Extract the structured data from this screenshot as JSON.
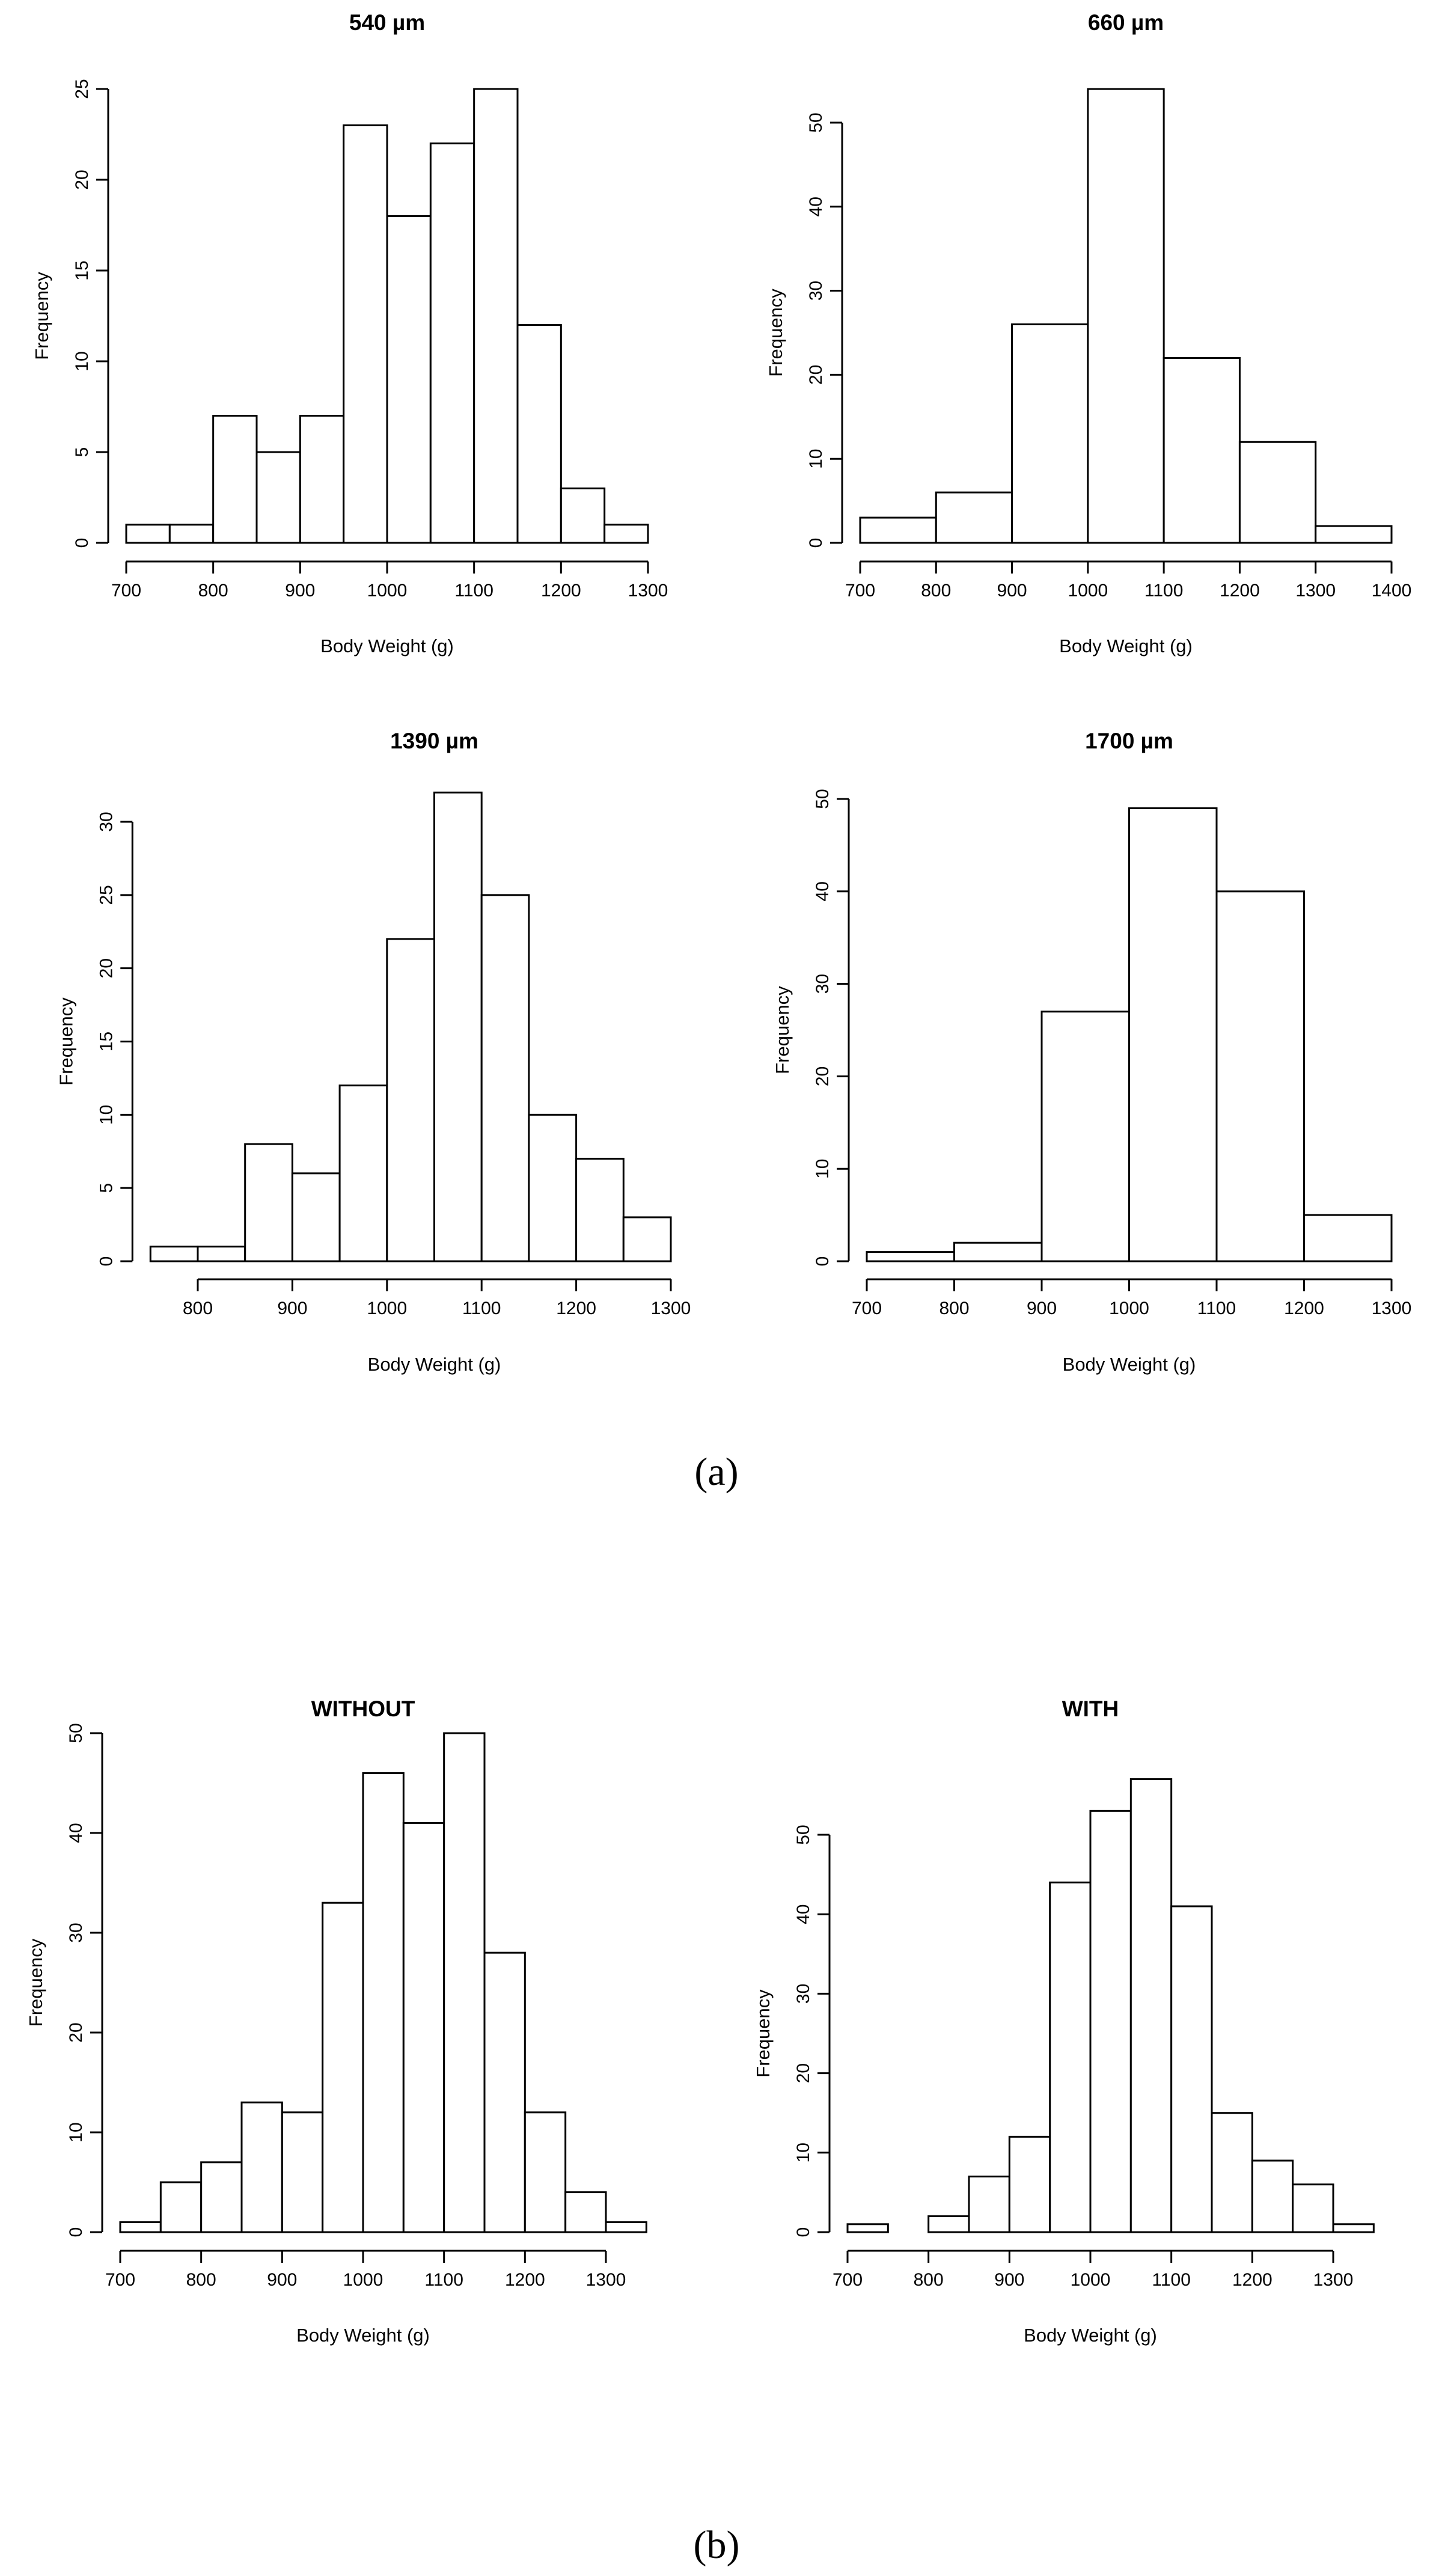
{
  "panel_labels": {
    "a": "(a)",
    "b": "(b)"
  },
  "chart_data": [
    {
      "type": "bar",
      "title": "540 µm",
      "xlabel": "Body Weight (g)",
      "ylabel": "Frequency",
      "bin_edges": [
        700,
        750,
        800,
        850,
        900,
        950,
        1000,
        1050,
        1100,
        1150,
        1200,
        1250,
        1300
      ],
      "values": [
        1,
        1,
        7,
        5,
        7,
        23,
        18,
        22,
        25,
        12,
        3,
        1
      ],
      "xlim": [
        700,
        1300
      ],
      "ylim": [
        0,
        25
      ],
      "xticks": [
        "700",
        "800",
        "900",
        "1000",
        "1100",
        "1200",
        "1300"
      ],
      "yticks": [
        "0",
        "5",
        "10",
        "15",
        "20",
        "25"
      ]
    },
    {
      "type": "bar",
      "title": "660 µm",
      "xlabel": "Body Weight (g)",
      "ylabel": "Frequency",
      "bin_edges": [
        700,
        800,
        900,
        1000,
        1100,
        1200,
        1300,
        1400
      ],
      "values": [
        3,
        6,
        26,
        54,
        22,
        12,
        2
      ],
      "xlim": [
        700,
        1400
      ],
      "ylim": [
        0,
        50
      ],
      "xticks": [
        "700",
        "800",
        "900",
        "1000",
        "1100",
        "1200",
        "1300",
        "1400"
      ],
      "yticks": [
        "0",
        "10",
        "20",
        "30",
        "40",
        "50"
      ]
    },
    {
      "type": "bar",
      "title": "1390 µm",
      "xlabel": "Body Weight (g)",
      "ylabel": "Frequency",
      "bin_edges": [
        750,
        800,
        850,
        900,
        950,
        1000,
        1050,
        1100,
        1150,
        1200,
        1250,
        1300
      ],
      "values": [
        1,
        1,
        8,
        6,
        12,
        22,
        32,
        25,
        10,
        7,
        3
      ],
      "xlim": [
        800,
        1300
      ],
      "ylim": [
        0,
        30
      ],
      "xticks": [
        "800",
        "900",
        "1000",
        "1100",
        "1200",
        "1300"
      ],
      "yticks": [
        "0",
        "5",
        "10",
        "15",
        "20",
        "25",
        "30"
      ]
    },
    {
      "type": "bar",
      "title": "1700 µm",
      "xlabel": "Body Weight (g)",
      "ylabel": "Frequency",
      "bin_edges": [
        700,
        800,
        900,
        1000,
        1100,
        1200,
        1300
      ],
      "values": [
        1,
        2,
        27,
        49,
        40,
        5
      ],
      "xlim": [
        700,
        1300
      ],
      "ylim": [
        0,
        50
      ],
      "xticks": [
        "700",
        "800",
        "900",
        "1000",
        "1100",
        "1200",
        "1300"
      ],
      "yticks": [
        "0",
        "10",
        "20",
        "30",
        "40",
        "50"
      ]
    },
    {
      "type": "bar",
      "title": "WITHOUT",
      "xlabel": "Body Weight (g)",
      "ylabel": "Frequency",
      "bin_edges": [
        700,
        750,
        800,
        850,
        900,
        950,
        1000,
        1050,
        1100,
        1150,
        1200,
        1250,
        1300,
        1350
      ],
      "values": [
        1,
        5,
        7,
        13,
        12,
        33,
        46,
        41,
        50,
        28,
        12,
        4,
        1
      ],
      "xlim": [
        700,
        1300
      ],
      "ylim": [
        0,
        50
      ],
      "xticks": [
        "700",
        "800",
        "900",
        "1000",
        "1100",
        "1200",
        "1300"
      ],
      "yticks": [
        "0",
        "10",
        "20",
        "30",
        "40",
        "50"
      ]
    },
    {
      "type": "bar",
      "title": "WITH",
      "xlabel": "Body Weight (g)",
      "ylabel": "Frequency",
      "bin_edges": [
        700,
        750,
        800,
        850,
        900,
        950,
        1000,
        1050,
        1100,
        1150,
        1200,
        1250,
        1300,
        1350
      ],
      "values": [
        1,
        0,
        2,
        7,
        12,
        44,
        53,
        57,
        41,
        15,
        9,
        6,
        1
      ],
      "xlim": [
        700,
        1300
      ],
      "ylim": [
        0,
        50
      ],
      "xticks": [
        "700",
        "800",
        "900",
        "1000",
        "1100",
        "1200",
        "1300"
      ],
      "yticks": [
        "0",
        "10",
        "20",
        "30",
        "40",
        "50"
      ]
    }
  ]
}
